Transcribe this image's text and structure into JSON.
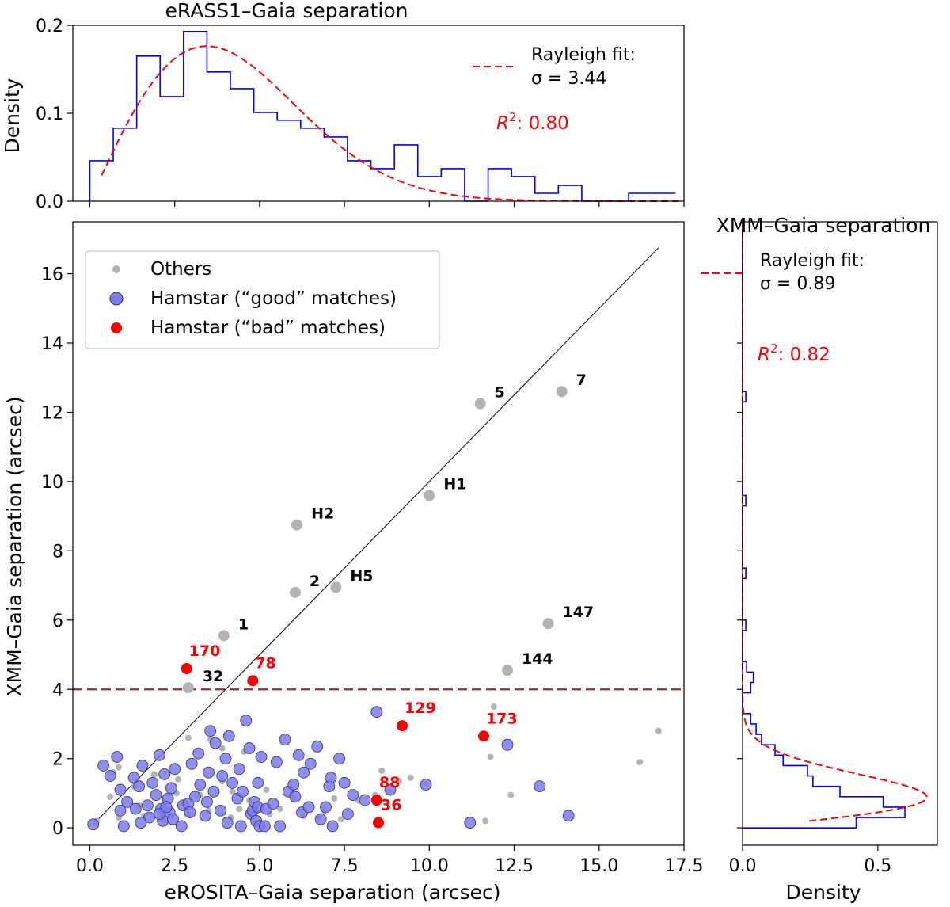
{
  "chart_data": [
    {
      "id": "top_hist",
      "type": "histogram",
      "title": "eRASS1–Gaia separation",
      "xlabel": "",
      "ylabel": "Density",
      "xlim": [
        -0.5,
        17.5
      ],
      "ylim": [
        0,
        0.2
      ],
      "yticks": [
        {
          "value": 0.0,
          "label": "0.0"
        },
        {
          "value": 0.1,
          "label": "0.1"
        },
        {
          "value": 0.2,
          "label": "0.2"
        }
      ],
      "xticks": [
        0,
        2.5,
        5,
        7.5,
        10,
        12.5,
        15,
        17.5
      ],
      "bins": [
        {
          "x0": 0.0,
          "x1": 0.69,
          "y": 0.046
        },
        {
          "x0": 0.69,
          "x1": 1.38,
          "y": 0.083
        },
        {
          "x0": 1.38,
          "x1": 2.07,
          "y": 0.165
        },
        {
          "x0": 2.07,
          "x1": 2.76,
          "y": 0.119
        },
        {
          "x0": 2.76,
          "x1": 3.45,
          "y": 0.193
        },
        {
          "x0": 3.45,
          "x1": 4.14,
          "y": 0.147
        },
        {
          "x0": 4.14,
          "x1": 4.83,
          "y": 0.128
        },
        {
          "x0": 4.83,
          "x1": 5.52,
          "y": 0.101
        },
        {
          "x0": 5.52,
          "x1": 6.21,
          "y": 0.092
        },
        {
          "x0": 6.21,
          "x1": 6.9,
          "y": 0.083
        },
        {
          "x0": 6.9,
          "x1": 7.59,
          "y": 0.073
        },
        {
          "x0": 7.59,
          "x1": 8.28,
          "y": 0.046
        },
        {
          "x0": 8.28,
          "x1": 8.97,
          "y": 0.037
        },
        {
          "x0": 8.97,
          "x1": 9.66,
          "y": 0.064
        },
        {
          "x0": 9.66,
          "x1": 10.35,
          "y": 0.028
        },
        {
          "x0": 10.35,
          "x1": 11.04,
          "y": 0.037
        },
        {
          "x0": 11.04,
          "x1": 11.73,
          "y": 0.0
        },
        {
          "x0": 11.73,
          "x1": 12.42,
          "y": 0.037
        },
        {
          "x0": 12.42,
          "x1": 13.11,
          "y": 0.028
        },
        {
          "x0": 13.11,
          "x1": 13.8,
          "y": 0.009
        },
        {
          "x0": 13.8,
          "x1": 14.49,
          "y": 0.018
        },
        {
          "x0": 14.49,
          "x1": 15.18,
          "y": 0.0
        },
        {
          "x0": 15.18,
          "x1": 15.87,
          "y": 0.0
        },
        {
          "x0": 15.87,
          "x1": 16.56,
          "y": 0.009
        },
        {
          "x0": 16.56,
          "x1": 17.25,
          "y": 0.009
        }
      ],
      "fit": {
        "name": "Rayleigh fit",
        "sigma": 3.44,
        "x_range": [
          0.35,
          17.4
        ],
        "scale": 1.0
      },
      "legend_label_line1": "Rayleigh fit:",
      "legend_label_line2": "σ = 3.44",
      "r2_label": "R",
      "r2_value": ": 0.80"
    },
    {
      "id": "scatter",
      "type": "scatter",
      "xlabel": "eROSITA–Gaia separation (arcsec)",
      "ylabel": "XMM–Gaia separation (arcsec)",
      "xlim": [
        -0.5,
        17.5
      ],
      "ylim": [
        -0.5,
        17.5
      ],
      "xticks": [
        {
          "value": 0.0,
          "label": "0.0"
        },
        {
          "value": 2.5,
          "label": "2.5"
        },
        {
          "value": 5.0,
          "label": "5.0"
        },
        {
          "value": 7.5,
          "label": "7.5"
        },
        {
          "value": 10.0,
          "label": "10.0"
        },
        {
          "value": 12.5,
          "label": "12.5"
        },
        {
          "value": 15.0,
          "label": "15.0"
        },
        {
          "value": 17.5,
          "label": "17.5"
        }
      ],
      "yticks": [
        {
          "value": 0,
          "label": "0"
        },
        {
          "value": 2,
          "label": "2"
        },
        {
          "value": 4,
          "label": "4"
        },
        {
          "value": 6,
          "label": "6"
        },
        {
          "value": 8,
          "label": "8"
        },
        {
          "value": 10,
          "label": "10"
        },
        {
          "value": 12,
          "label": "12"
        },
        {
          "value": 14,
          "label": "14"
        },
        {
          "value": 16,
          "label": "16"
        }
      ],
      "identity_line": [
        [
          0.1,
          0.1
        ],
        [
          16.75,
          16.75
        ]
      ],
      "threshold_line_y": 4.0,
      "legend": [
        {
          "key": "others",
          "label": "Others"
        },
        {
          "key": "good",
          "label": "Hamstar (“good” matches)"
        },
        {
          "key": "bad",
          "label": "Hamstar (“bad” matches)"
        }
      ],
      "series": [
        {
          "name": "Others",
          "key": "others",
          "labeled_points": [
            {
              "x": 11.5,
              "y": 12.25,
              "label": "5"
            },
            {
              "x": 13.9,
              "y": 12.6,
              "label": "7"
            },
            {
              "x": 10.0,
              "y": 9.6,
              "label": "H1"
            },
            {
              "x": 6.1,
              "y": 8.75,
              "label": "H2"
            },
            {
              "x": 6.05,
              "y": 6.8,
              "label": "2"
            },
            {
              "x": 7.25,
              "y": 6.95,
              "label": "H5"
            },
            {
              "x": 13.5,
              "y": 5.9,
              "label": "147"
            },
            {
              "x": 3.95,
              "y": 5.55,
              "label": "1"
            },
            {
              "x": 12.3,
              "y": 4.55,
              "label": "144"
            },
            {
              "x": 2.9,
              "y": 4.05,
              "label": "32"
            }
          ],
          "points": [
            [
              16.75,
              2.8
            ],
            [
              16.2,
              1.9
            ],
            [
              11.9,
              3.5
            ],
            [
              11.8,
              2.05
            ],
            [
              12.4,
              0.95
            ],
            [
              11.65,
              0.2
            ],
            [
              9.45,
              1.45
            ],
            [
              9.1,
              1.35
            ],
            [
              8.6,
              1.65
            ],
            [
              8.8,
              1.05
            ],
            [
              7.9,
              0.8
            ],
            [
              6.0,
              0.85
            ],
            [
              6.3,
              0.35
            ],
            [
              6.9,
              0.5
            ],
            [
              7.2,
              0.85
            ],
            [
              6.75,
              0.3
            ],
            [
              5.3,
              0.4
            ],
            [
              4.4,
              0.55
            ],
            [
              4.15,
              0.3
            ],
            [
              3.5,
              0.5
            ],
            [
              2.9,
              2.6
            ],
            [
              3.55,
              2.55
            ],
            [
              3.9,
              2.3
            ],
            [
              4.55,
              2.2
            ],
            [
              4.7,
              0.8
            ],
            [
              4.2,
              1.05
            ],
            [
              2.55,
              1.0
            ],
            [
              2.2,
              0.75
            ],
            [
              1.45,
              0.65
            ],
            [
              0.85,
              0.3
            ],
            [
              0.7,
              1.6
            ],
            [
              1.9,
              1.55
            ],
            [
              2.6,
              1.4
            ],
            [
              1.3,
              1.2
            ],
            [
              0.6,
              0.9
            ],
            [
              0.2,
              0.2
            ],
            [
              0.85,
              1.75
            ],
            [
              3.9,
              1.35
            ],
            [
              5.2,
              1.1
            ],
            [
              2.2,
              0.2
            ],
            [
              1.6,
              0.35
            ],
            [
              2.9,
              0.4
            ],
            [
              3.25,
              0.95
            ],
            [
              4.9,
              0.15
            ],
            [
              5.6,
              0.55
            ],
            [
              7.4,
              0.25
            ],
            [
              8.4,
              0.95
            ],
            [
              9.9,
              1.25
            ]
          ]
        },
        {
          "name": "Hamstar (“good” matches)",
          "key": "good",
          "points": [
            [
              0.1,
              0.1
            ],
            [
              0.9,
              0.5
            ],
            [
              0.9,
              1.1
            ],
            [
              0.6,
              1.5
            ],
            [
              0.4,
              1.8
            ],
            [
              0.8,
              2.05
            ],
            [
              1.0,
              0.05
            ],
            [
              1.1,
              0.75
            ],
            [
              1.3,
              1.45
            ],
            [
              1.45,
              1.2
            ],
            [
              1.55,
              1.8
            ],
            [
              1.75,
              0.3
            ],
            [
              1.5,
              0.15
            ],
            [
              1.7,
              0.65
            ],
            [
              1.85,
              1.3
            ],
            [
              1.95,
              0.95
            ],
            [
              2.05,
              2.1
            ],
            [
              2.1,
              0.55
            ],
            [
              2.15,
              0.2
            ],
            [
              2.2,
              1.55
            ],
            [
              2.35,
              0.45
            ],
            [
              2.3,
              0.85
            ],
            [
              2.4,
              1.15
            ],
            [
              2.45,
              0.25
            ],
            [
              2.5,
              1.7
            ],
            [
              2.05,
              0.4
            ],
            [
              2.25,
              0.6
            ],
            [
              1.35,
              0.55
            ],
            [
              2.7,
              0.05
            ],
            [
              2.75,
              0.65
            ],
            [
              2.9,
              0.7
            ],
            [
              2.95,
              0.45
            ],
            [
              3.0,
              1.85
            ],
            [
              3.1,
              0.9
            ],
            [
              3.2,
              2.15
            ],
            [
              3.25,
              1.25
            ],
            [
              3.4,
              0.35
            ],
            [
              3.45,
              0.75
            ],
            [
              3.5,
              1.6
            ],
            [
              3.55,
              2.8
            ],
            [
              3.65,
              1.05
            ],
            [
              3.7,
              2.45
            ],
            [
              3.85,
              0.5
            ],
            [
              3.9,
              1.5
            ],
            [
              4.0,
              2.0
            ],
            [
              4.05,
              0.15
            ],
            [
              4.1,
              2.65
            ],
            [
              4.2,
              1.3
            ],
            [
              4.35,
              0.85
            ],
            [
              4.4,
              1.7
            ],
            [
              4.45,
              0.05
            ],
            [
              4.5,
              1.05
            ],
            [
              4.6,
              3.1
            ],
            [
              4.7,
              2.3
            ],
            [
              4.75,
              0.4
            ],
            [
              4.8,
              0.5
            ],
            [
              4.85,
              0.75
            ],
            [
              4.95,
              0.6
            ],
            [
              4.9,
              0.2
            ],
            [
              5.0,
              0.05
            ],
            [
              4.95,
              1.3
            ],
            [
              5.05,
              2.05
            ],
            [
              5.15,
              0.05
            ],
            [
              5.2,
              0.55
            ],
            [
              5.4,
              0.7
            ],
            [
              5.5,
              1.9
            ],
            [
              5.6,
              0.05
            ],
            [
              5.75,
              2.55
            ],
            [
              5.85,
              1.05
            ],
            [
              6.0,
              1.25
            ],
            [
              6.05,
              0.9
            ],
            [
              6.15,
              2.1
            ],
            [
              6.25,
              0.45
            ],
            [
              6.3,
              1.6
            ],
            [
              6.45,
              0.6
            ],
            [
              6.5,
              1.85
            ],
            [
              6.7,
              2.35
            ],
            [
              6.8,
              0.25
            ],
            [
              6.95,
              0.6
            ],
            [
              7.05,
              1.2
            ],
            [
              7.1,
              1.45
            ],
            [
              7.15,
              0.05
            ],
            [
              7.35,
              2.0
            ],
            [
              7.5,
              1.3
            ],
            [
              7.6,
              0.4
            ],
            [
              7.75,
              0.95
            ],
            [
              8.1,
              0.8
            ],
            [
              8.45,
              3.35
            ],
            [
              8.85,
              1.1
            ],
            [
              9.9,
              1.25
            ],
            [
              11.2,
              0.15
            ],
            [
              12.3,
              2.4
            ],
            [
              13.25,
              1.2
            ],
            [
              14.1,
              0.35
            ]
          ]
        },
        {
          "name": "Hamstar (“bad” matches)",
          "key": "bad",
          "labeled_points": [
            {
              "x": 2.85,
              "y": 4.6,
              "label": "170"
            },
            {
              "x": 4.8,
              "y": 4.25,
              "label": "78"
            },
            {
              "x": 9.2,
              "y": 2.95,
              "label": "129"
            },
            {
              "x": 11.6,
              "y": 2.65,
              "label": "173"
            },
            {
              "x": 8.45,
              "y": 0.8,
              "label": "88"
            },
            {
              "x": 8.5,
              "y": 0.15,
              "label": "36"
            }
          ]
        }
      ]
    },
    {
      "id": "right_hist",
      "type": "histogram",
      "orientation": "horizontal",
      "title": "XMM–Gaia separation",
      "xlabel": "Density",
      "xlim": [
        0,
        0.72
      ],
      "xticks": [
        {
          "value": 0.0,
          "label": "0.0"
        },
        {
          "value": 0.5,
          "label": "0.5"
        }
      ],
      "bins": [
        {
          "y0": 0.0,
          "y1": 0.3,
          "x": 0.42
        },
        {
          "y0": 0.3,
          "y1": 0.6,
          "x": 0.6
        },
        {
          "y0": 0.6,
          "y1": 0.9,
          "x": 0.52
        },
        {
          "y0": 0.9,
          "y1": 1.2,
          "x": 0.36
        },
        {
          "y0": 1.2,
          "y1": 1.5,
          "x": 0.26
        },
        {
          "y0": 1.5,
          "y1": 1.8,
          "x": 0.24
        },
        {
          "y0": 1.8,
          "y1": 2.1,
          "x": 0.15
        },
        {
          "y0": 2.1,
          "y1": 2.4,
          "x": 0.12
        },
        {
          "y0": 2.4,
          "y1": 2.7,
          "x": 0.07
        },
        {
          "y0": 2.7,
          "y1": 3.0,
          "x": 0.05
        },
        {
          "y0": 3.0,
          "y1": 3.3,
          "x": 0.03
        },
        {
          "y0": 3.3,
          "y1": 3.6,
          "x": 0.0
        },
        {
          "y0": 3.6,
          "y1": 3.9,
          "x": 0.0
        },
        {
          "y0": 3.9,
          "y1": 4.2,
          "x": 0.03
        },
        {
          "y0": 4.2,
          "y1": 4.5,
          "x": 0.04
        },
        {
          "y0": 4.5,
          "y1": 4.8,
          "x": 0.015
        },
        {
          "y0": 5.7,
          "y1": 6.0,
          "x": 0.012
        },
        {
          "y0": 7.2,
          "y1": 7.5,
          "x": 0.012
        },
        {
          "y0": 9.3,
          "y1": 9.6,
          "x": 0.012
        },
        {
          "y0": 12.3,
          "y1": 12.6,
          "x": 0.012
        }
      ],
      "fit": {
        "name": "Rayleigh fit",
        "sigma": 0.89,
        "y_range": [
          0.2,
          17.5
        ],
        "scale": 1.0
      },
      "legend_label_line1": "Rayleigh fit:",
      "legend_label_line2": "σ = 0.89",
      "r2_label": "R",
      "r2_value": ": 0.82"
    }
  ],
  "colors": {
    "hist_line": "#0000ff",
    "fit_line": "#ff0000",
    "others": "#b3b3b3",
    "good_fill": "#7b7bef",
    "good_stroke": "#30306a",
    "bad": "#ff0000",
    "threshold": "#a52a2a",
    "identity": "#000000"
  }
}
